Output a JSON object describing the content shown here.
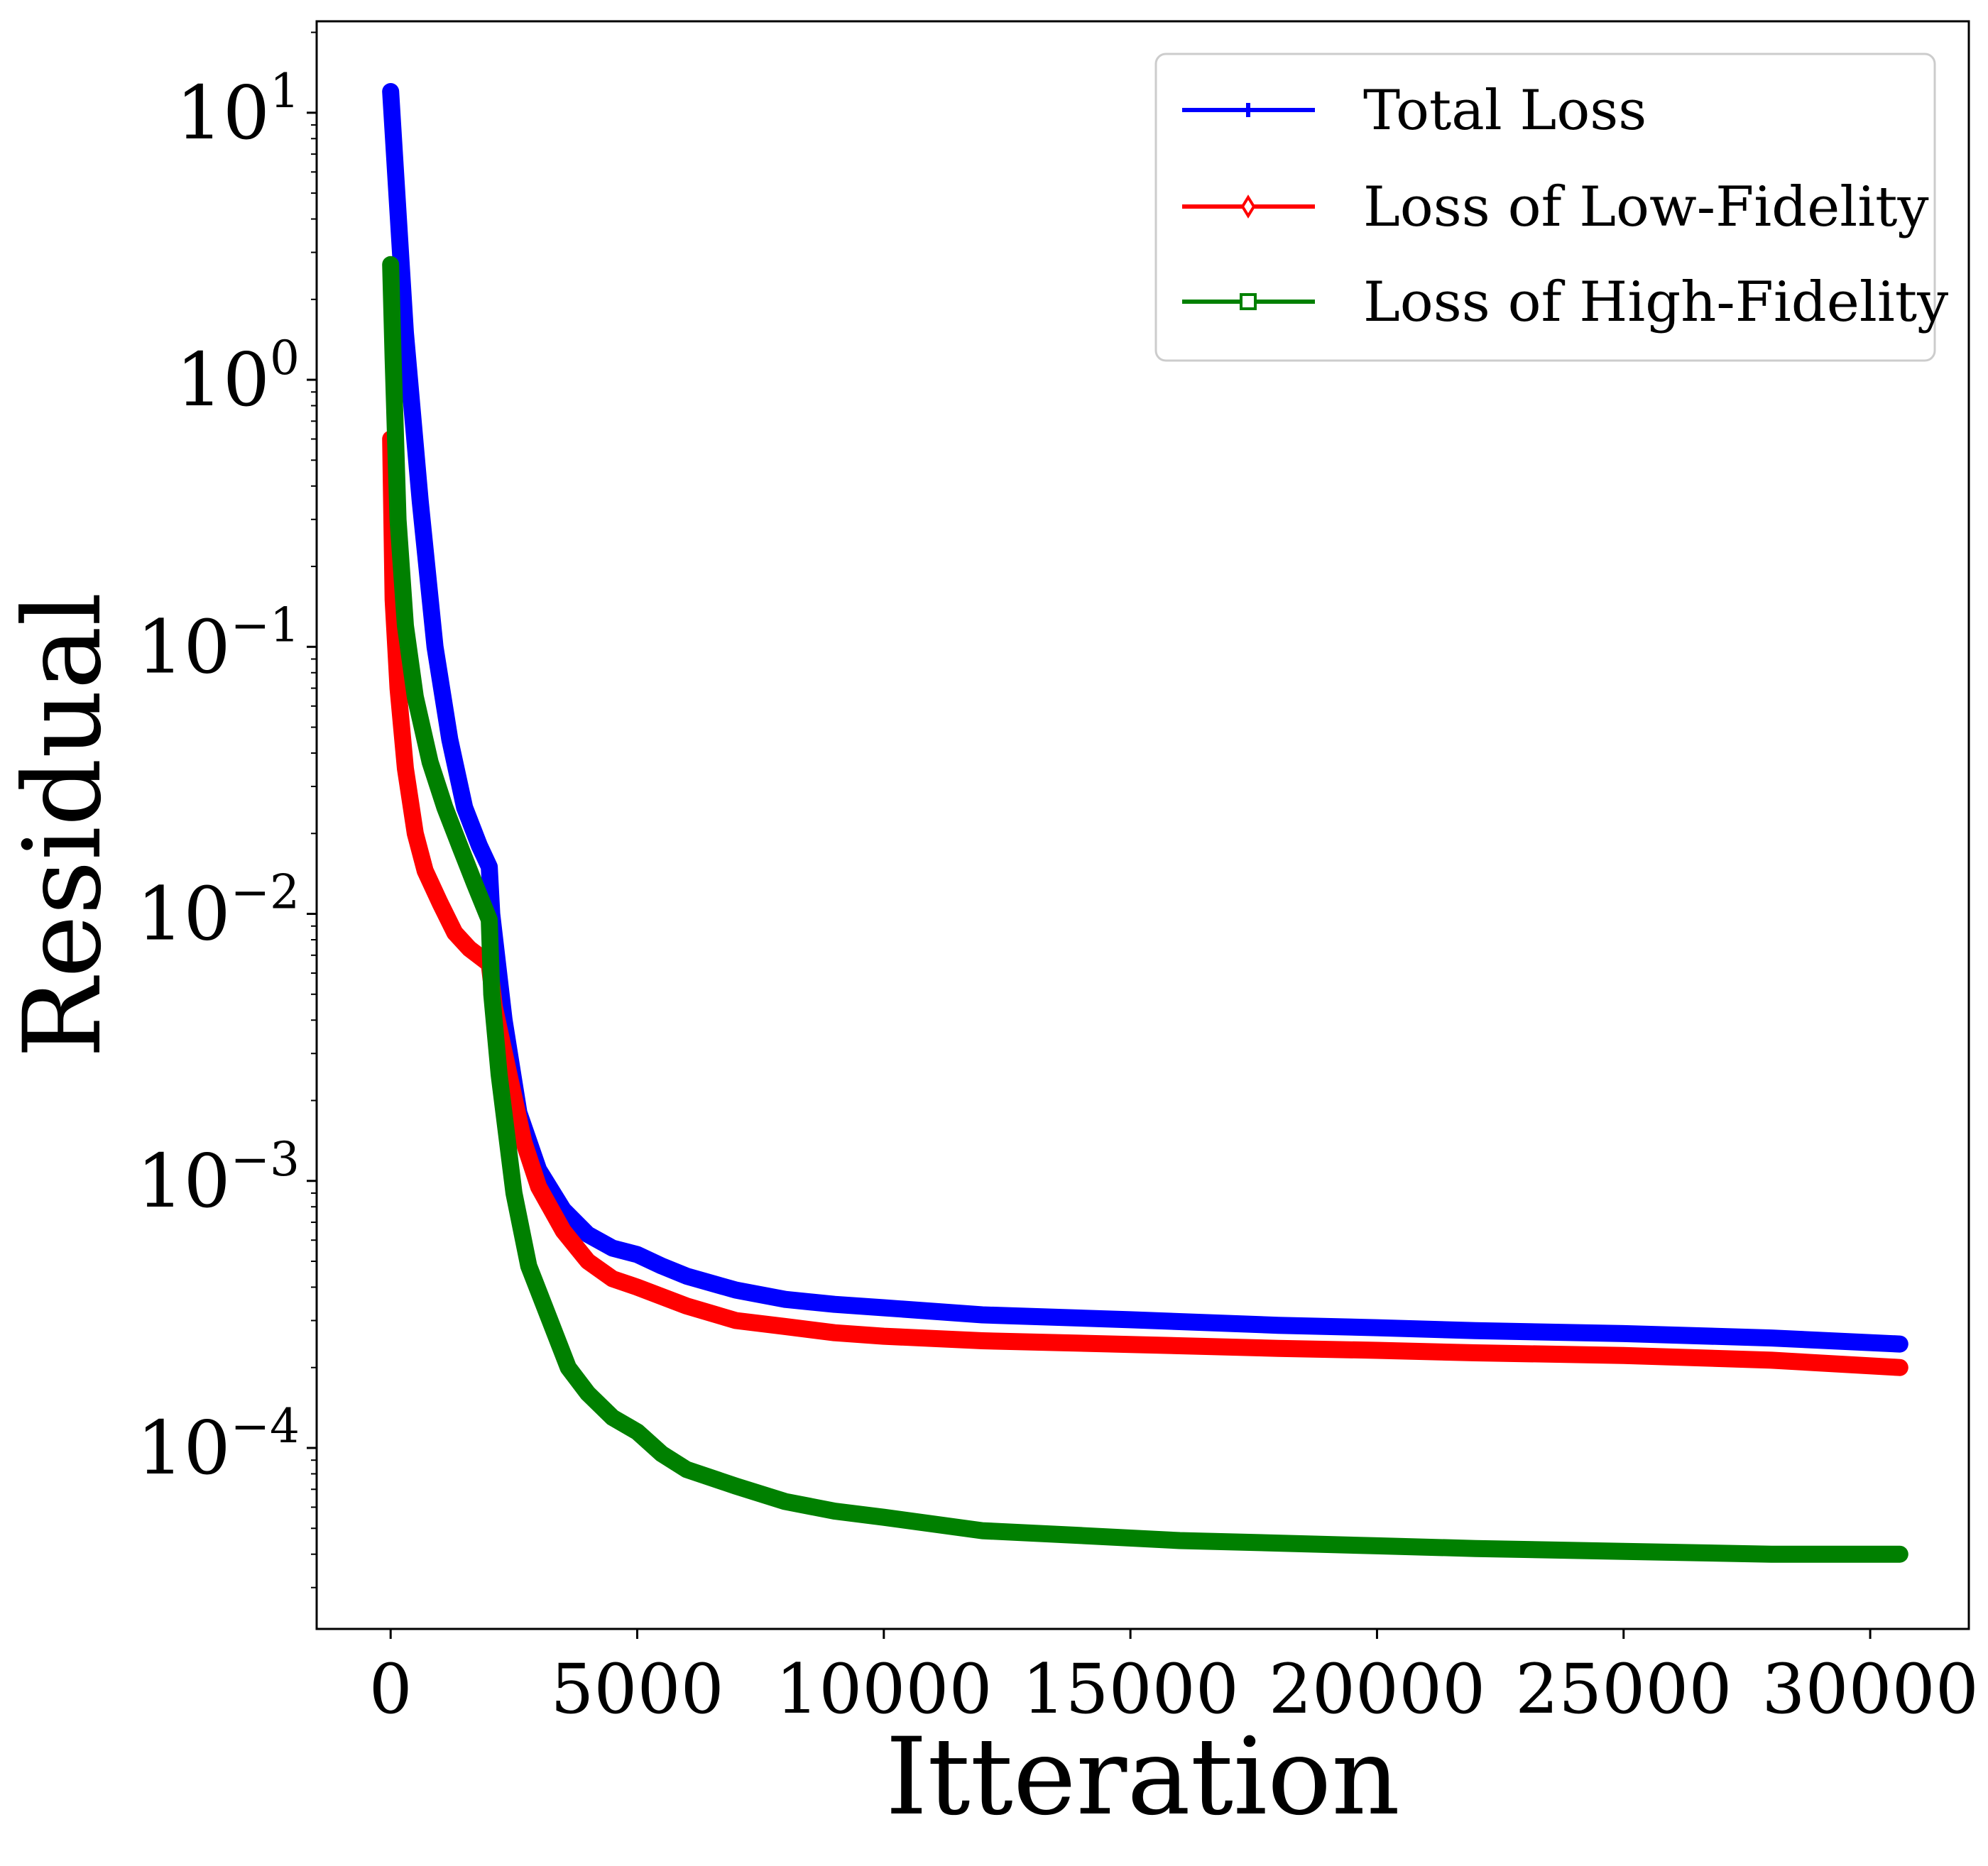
{
  "chart_data": {
    "type": "line",
    "xlabel": "Itteration",
    "ylabel": "Residual",
    "yscale": "log",
    "xlim": [
      -1500,
      32000
    ],
    "ylim": [
      2.1e-05,
      22
    ],
    "legend_position": "top-right",
    "grid": false,
    "x_ticks": [
      0,
      5000,
      10000,
      15000,
      20000,
      25000,
      30000
    ],
    "x_tick_labels": [
      "0",
      "5000",
      "10000",
      "15000",
      "20000",
      "25000",
      "30000"
    ],
    "y_ticks": [
      {
        "value": 10,
        "base": "10",
        "exp": "1"
      },
      {
        "value": 1,
        "base": "10",
        "exp": "0"
      },
      {
        "value": 0.1,
        "base": "10",
        "exp": "−1"
      },
      {
        "value": 0.01,
        "base": "10",
        "exp": "−2"
      },
      {
        "value": 0.001,
        "base": "10",
        "exp": "−3"
      },
      {
        "value": 0.0001,
        "base": "10",
        "exp": "−4"
      }
    ],
    "series": [
      {
        "name": "Total Loss",
        "color": "#0000ff",
        "marker": "plus",
        "x": [
          0,
          100,
          300,
          600,
          900,
          1200,
          1500,
          1800,
          2000,
          2050,
          2300,
          2600,
          3000,
          3500,
          4000,
          4500,
          5000,
          5500,
          6000,
          7000,
          8000,
          9000,
          10000,
          12000,
          15000,
          18000,
          20000,
          22000,
          25000,
          28000,
          30600
        ],
        "y": [
          12,
          6,
          1.5,
          0.35,
          0.1,
          0.045,
          0.025,
          0.018,
          0.015,
          0.01,
          0.004,
          0.0018,
          0.0011,
          0.00078,
          0.00063,
          0.00056,
          0.00053,
          0.00048,
          0.00044,
          0.00039,
          0.00036,
          0.000345,
          0.000335,
          0.000315,
          0.000302,
          0.000288,
          0.000282,
          0.000275,
          0.000268,
          0.000258,
          0.000245
        ]
      },
      {
        "name": "Loss of Low-Fidelity",
        "color": "#ff0000",
        "marker": "thin_diamond",
        "x": [
          0,
          50,
          150,
          300,
          500,
          700,
          1000,
          1300,
          1600,
          2000,
          2100,
          2400,
          2700,
          3000,
          3500,
          4000,
          4500,
          5000,
          6000,
          7000,
          8000,
          9000,
          10000,
          12000,
          15000,
          18000,
          20000,
          22000,
          25000,
          28000,
          30600
        ],
        "y": [
          0.6,
          0.15,
          0.07,
          0.035,
          0.02,
          0.0145,
          0.011,
          0.0085,
          0.0074,
          0.0065,
          0.0045,
          0.0025,
          0.0014,
          0.00095,
          0.00065,
          0.0005,
          0.00043,
          0.0004,
          0.00034,
          0.0003,
          0.000285,
          0.00027,
          0.000262,
          0.000252,
          0.000244,
          0.000236,
          0.000232,
          0.000227,
          0.000222,
          0.000213,
          0.0002
        ]
      },
      {
        "name": "Loss of High-Fidelity",
        "color": "#008000",
        "marker": "square",
        "x": [
          0,
          50,
          150,
          300,
          500,
          800,
          1100,
          1400,
          1700,
          2000,
          2050,
          2200,
          2500,
          2800,
          3200,
          3600,
          4000,
          4500,
          5000,
          5500,
          6000,
          7000,
          8000,
          9000,
          10000,
          12000,
          14000,
          16000,
          18000,
          20000,
          22000,
          25000,
          28000,
          30600
        ],
        "y": [
          2.7,
          1.2,
          0.3,
          0.12,
          0.065,
          0.037,
          0.025,
          0.018,
          0.013,
          0.0095,
          0.005,
          0.0025,
          0.0009,
          0.00048,
          0.00031,
          0.0002,
          0.00016,
          0.00013,
          0.000115,
          9.5e-05,
          8.3e-05,
          7.2e-05,
          6.3e-05,
          5.8e-05,
          5.5e-05,
          4.9e-05,
          4.7e-05,
          4.5e-05,
          4.4e-05,
          4.3e-05,
          4.2e-05,
          4.1e-05,
          4e-05,
          4e-05
        ]
      }
    ]
  }
}
